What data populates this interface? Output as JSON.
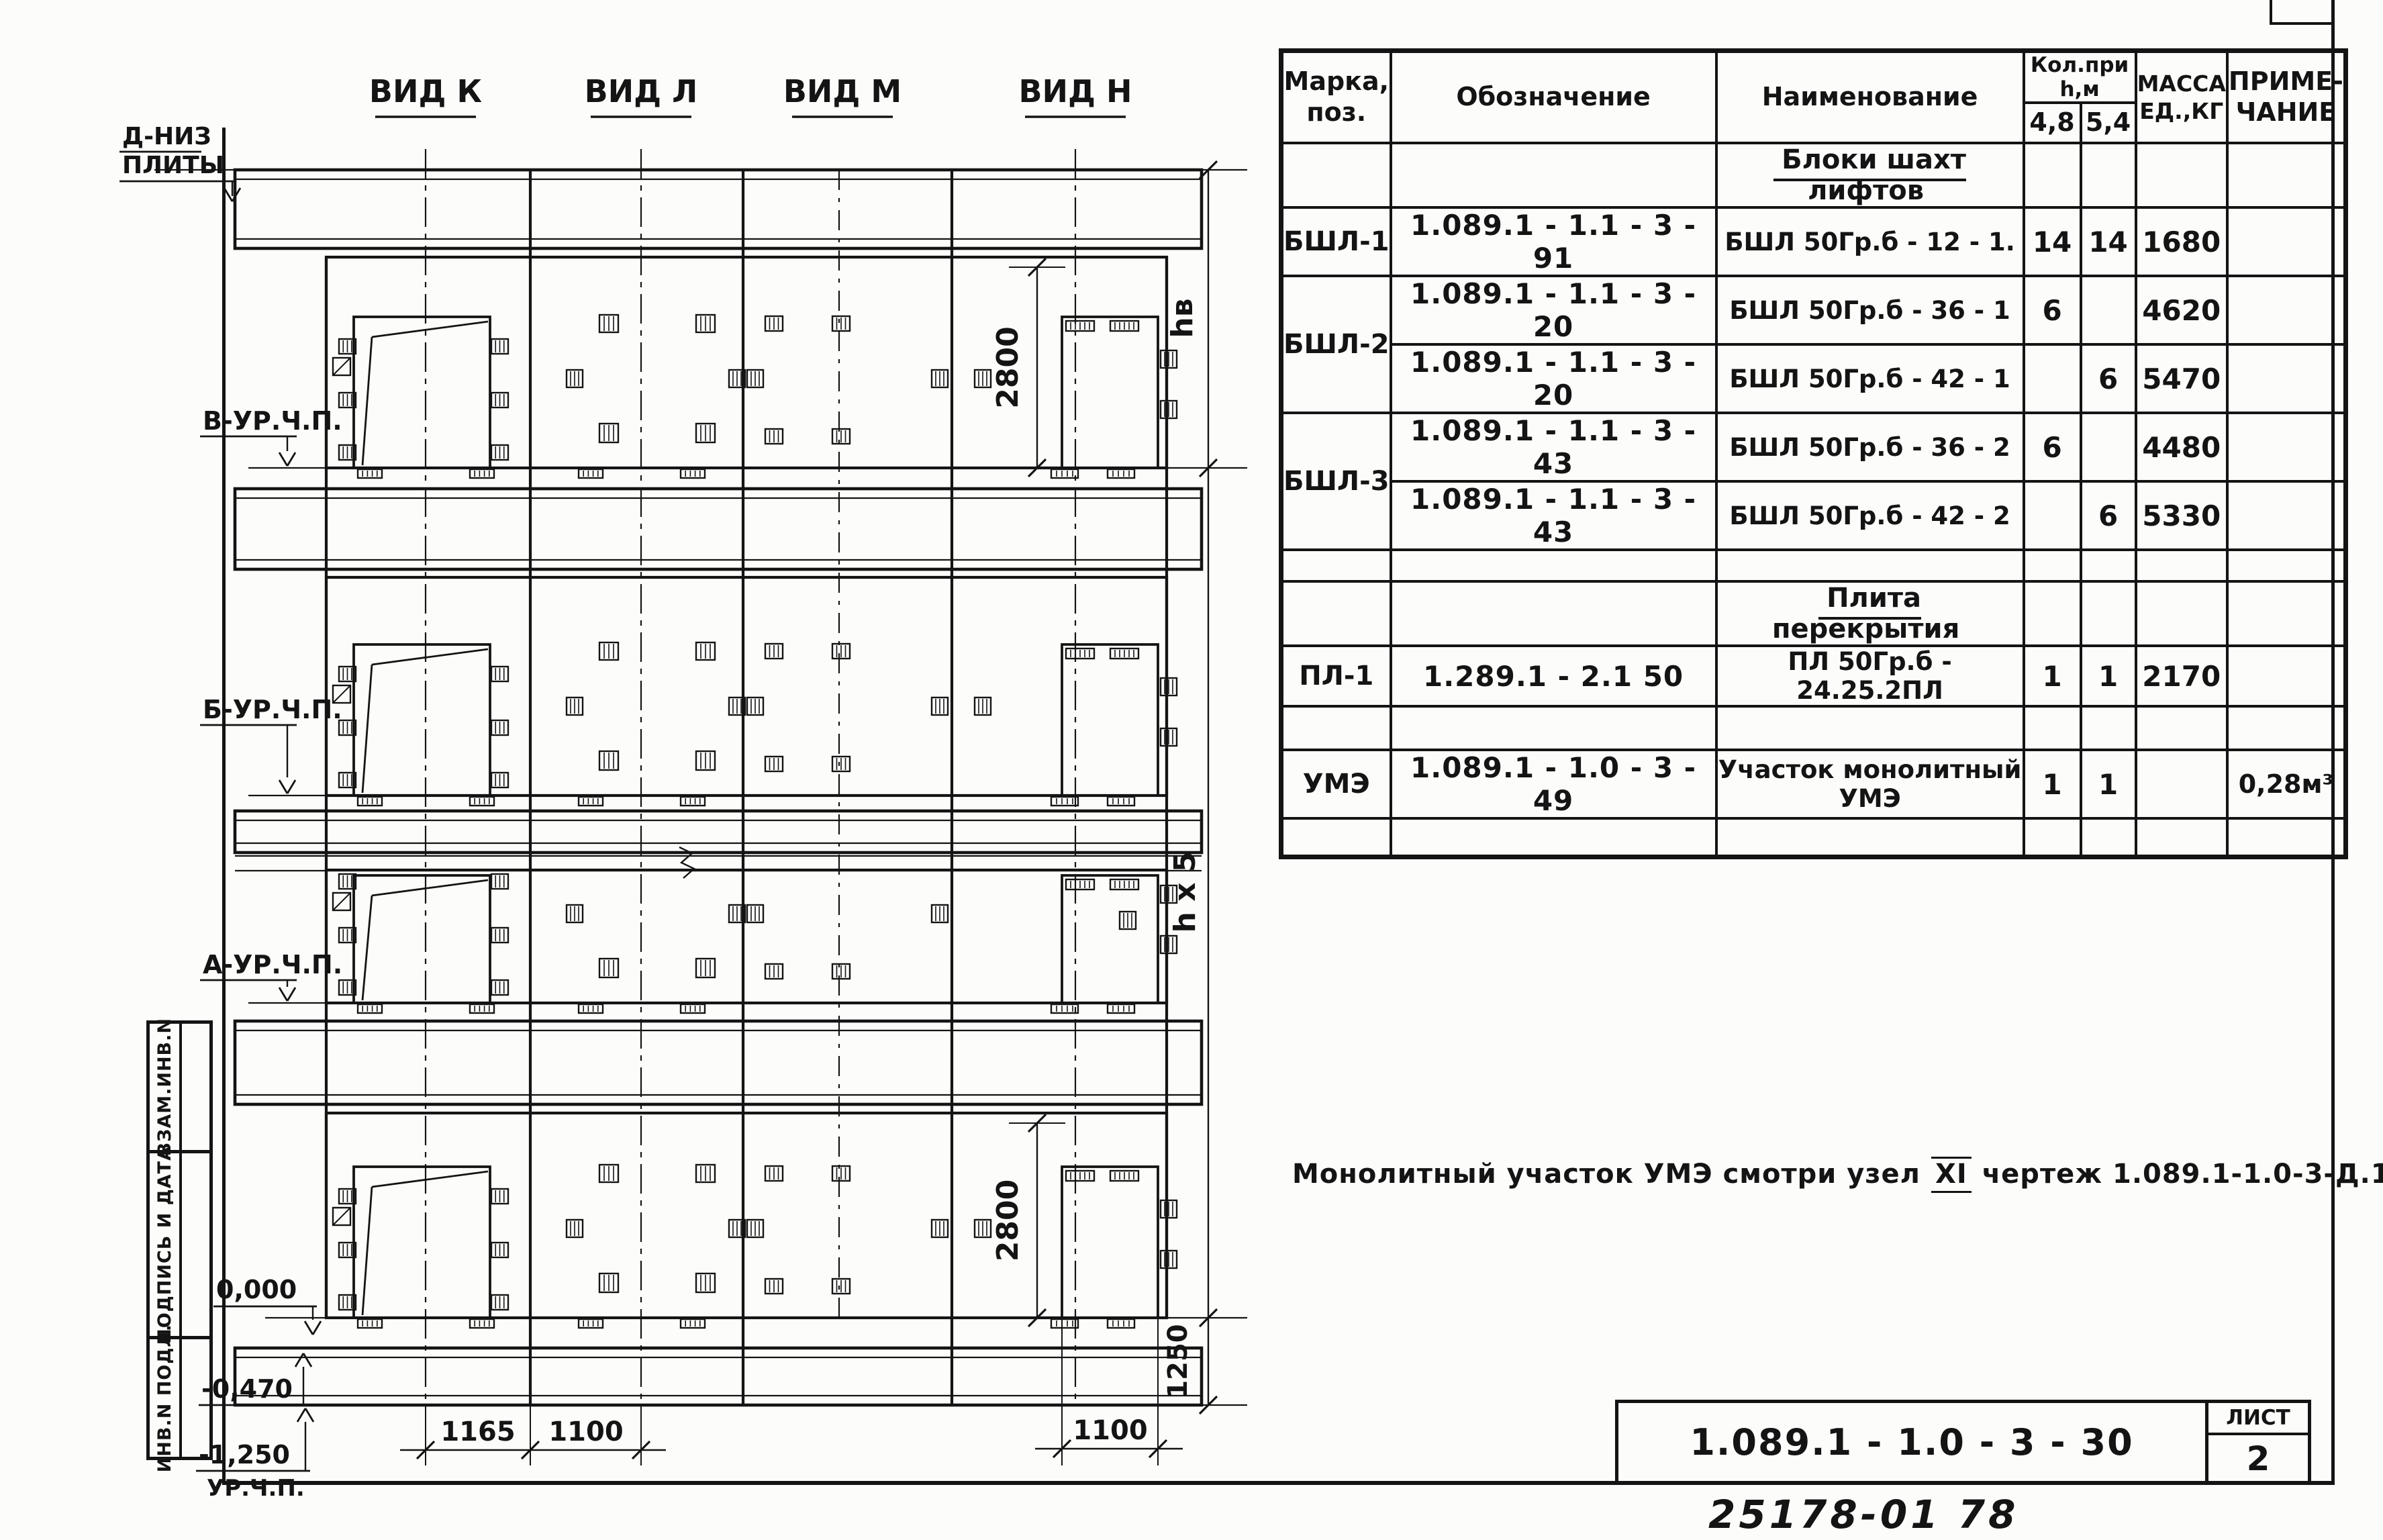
{
  "drawing": {
    "view_labels": {
      "k": "ВИД К",
      "l": "ВИД Л",
      "m": "ВИД М",
      "n": "ВИД Н"
    },
    "levels": {
      "top1": "Д-НИЗ",
      "top2": "ПЛИТЫ",
      "v": "В-УР.Ч.П.",
      "b": "Б-УР.Ч.П.",
      "a": "А-УР.Ч.П.",
      "zero": "0,000",
      "m470": "-0,470",
      "m1250": "-1,250",
      "urchp": "УР.Ч.П."
    },
    "dims": {
      "d1165": "1165",
      "d1100_left": "1100",
      "d1100_right": "1100",
      "d2800_top": "2800",
      "d2800_bottom": "2800",
      "d1250": "1250",
      "hv": "hв",
      "hx5": "h х 5"
    }
  },
  "stamp": {
    "cells": [
      "ВЗАМ.ИНВ.N",
      "ПОДПИСЬ И ДАТА",
      "ИНВ.N ПОДЛ."
    ]
  },
  "table": {
    "headers": {
      "marka": "Марка,\nпоз.",
      "oboz": "Обозначение",
      "naim": "Наименование",
      "kol": "Кол.при h,м",
      "k48": "4,8",
      "k54": "5,4",
      "massa": "МАССА\nЕД.,КГ",
      "prim": "ПРИМЕ-\nЧАНИЕ"
    },
    "rows": [
      {
        "naim": "Блоки шахт лифтов"
      },
      {
        "marka": "БШЛ-1",
        "oboz": "1.089.1 - 1.1 - 3 - 91",
        "naim": "БШЛ 50Гр.б - 12 - 1.",
        "k48": "14",
        "k54": "14",
        "massa": "1680",
        "prim": ""
      },
      {
        "marka": "БШЛ-2",
        "oboz": "1.089.1 - 1.1 - 3 - 20",
        "naim": "БШЛ 50Гр.б - 36 - 1",
        "k48": "6",
        "k54": "",
        "massa": "4620",
        "prim": ""
      },
      {
        "oboz": "1.089.1 - 1.1 - 3 - 20",
        "naim": "БШЛ 50Гр.б - 42 - 1",
        "k48": "",
        "k54": "6",
        "massa": "5470",
        "prim": ""
      },
      {
        "marka": "БШЛ-3",
        "oboz": "1.089.1 - 1.1 - 3 - 43",
        "naim": "БШЛ 50Гр.б - 36 - 2",
        "k48": "6",
        "k54": "",
        "massa": "4480",
        "prim": ""
      },
      {
        "oboz": "1.089.1 - 1.1 - 3 - 43",
        "naim": "БШЛ 50Гр.б - 42 - 2",
        "k48": "",
        "k54": "6",
        "massa": "5330",
        "prim": ""
      },
      {},
      {
        "naim": "Плита перекрытия"
      },
      {
        "marka": "ПЛ-1",
        "oboz": "1.289.1 - 2.1 50",
        "naim": "ПЛ 50Гр.б - 24.25.2ПЛ",
        "k48": "1",
        "k54": "1",
        "massa": "2170",
        "prim": ""
      },
      {},
      {
        "marka": "УМЭ",
        "oboz": "1.089.1 - 1.0 - 3 - 49",
        "naim": "Участок монолитный УМЭ",
        "k48": "1",
        "k54": "1",
        "massa": "",
        "prim": "0,28м³"
      },
      {}
    ]
  },
  "note": {
    "part1": "Монолитный  участок  УМЭ  смотри  узел",
    "node": "XI",
    "part2": "чертеж 1.089.1-1.0-3-Д.1"
  },
  "title_block": {
    "doc_number": "1.089.1 - 1.0 - 3 - 30",
    "sheet_label": "ЛИСТ",
    "sheet_number": "2"
  },
  "footer": {
    "archive_number": "25178-01  78"
  }
}
